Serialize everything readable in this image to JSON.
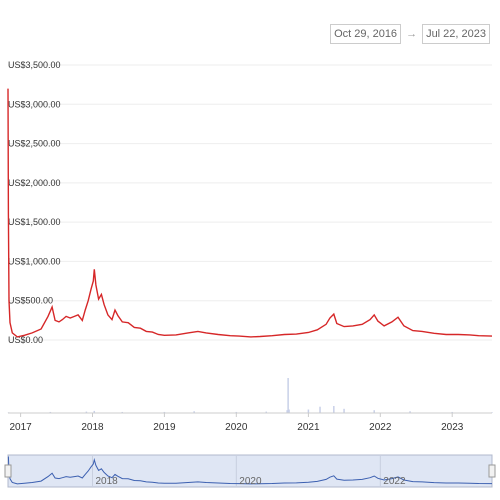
{
  "range_selector": {
    "from": "Oct 29, 2016",
    "arrow": "→",
    "to": "Jul 22, 2023"
  },
  "colors": {
    "price_line": "#d62728",
    "volume": "#c8d0e8",
    "navigator_fill": "#dfe6f4",
    "navigator_line": "#3b5fb0",
    "grid": "#eeeeee"
  },
  "chart_data": {
    "type": "line",
    "title": "",
    "xlabel": "",
    "ylabel": "",
    "ylim": [
      0,
      3500
    ],
    "xlim": [
      "2016-10-29",
      "2023-07-22"
    ],
    "y_ticks": [
      "US$0.00",
      "US$500.00",
      "US$1,000.00",
      "US$1,500.00",
      "US$2,000.00",
      "US$2,500.00",
      "US$3,000.00",
      "US$3,500.00"
    ],
    "x_ticks": [
      "2017",
      "2018",
      "2019",
      "2020",
      "2021",
      "2022",
      "2023"
    ],
    "navigator_ticks": [
      "2018",
      "2020",
      "2022"
    ],
    "series": [
      {
        "values": [
          [
            "2016-10-29",
            3200
          ],
          [
            "2016-10-31",
            1600
          ],
          [
            "2016-11-03",
            500
          ],
          [
            "2016-11-08",
            220
          ],
          [
            "2016-11-20",
            90
          ],
          [
            "2016-12-15",
            40
          ],
          [
            "2017-01-20",
            60
          ],
          [
            "2017-03-01",
            90
          ],
          [
            "2017-04-15",
            140
          ],
          [
            "2017-05-20",
            300
          ],
          [
            "2017-06-10",
            420
          ],
          [
            "2017-06-25",
            250
          ],
          [
            "2017-07-15",
            230
          ],
          [
            "2017-08-01",
            260
          ],
          [
            "2017-08-20",
            300
          ],
          [
            "2017-09-10",
            280
          ],
          [
            "2017-10-01",
            300
          ],
          [
            "2017-10-20",
            320
          ],
          [
            "2017-11-10",
            250
          ],
          [
            "2017-11-25",
            380
          ],
          [
            "2017-12-10",
            500
          ],
          [
            "2017-12-25",
            650
          ],
          [
            "2018-01-05",
            750
          ],
          [
            "2018-01-10",
            900
          ],
          [
            "2018-01-18",
            700
          ],
          [
            "2018-02-01",
            520
          ],
          [
            "2018-02-15",
            580
          ],
          [
            "2018-03-01",
            450
          ],
          [
            "2018-03-20",
            320
          ],
          [
            "2018-04-10",
            260
          ],
          [
            "2018-04-25",
            380
          ],
          [
            "2018-05-10",
            310
          ],
          [
            "2018-06-01",
            230
          ],
          [
            "2018-07-01",
            220
          ],
          [
            "2018-08-01",
            160
          ],
          [
            "2018-09-01",
            150
          ],
          [
            "2018-10-01",
            110
          ],
          [
            "2018-11-01",
            100
          ],
          [
            "2018-12-01",
            70
          ],
          [
            "2019-01-01",
            60
          ],
          [
            "2019-03-01",
            65
          ],
          [
            "2019-05-01",
            90
          ],
          [
            "2019-06-20",
            110
          ],
          [
            "2019-08-01",
            90
          ],
          [
            "2019-10-01",
            70
          ],
          [
            "2019-12-01",
            55
          ],
          [
            "2020-01-15",
            50
          ],
          [
            "2020-03-15",
            40
          ],
          [
            "2020-05-01",
            45
          ],
          [
            "2020-07-01",
            55
          ],
          [
            "2020-09-01",
            70
          ],
          [
            "2020-11-01",
            75
          ],
          [
            "2021-01-01",
            95
          ],
          [
            "2021-02-15",
            130
          ],
          [
            "2021-04-01",
            200
          ],
          [
            "2021-04-20",
            280
          ],
          [
            "2021-05-10",
            330
          ],
          [
            "2021-05-25",
            210
          ],
          [
            "2021-07-01",
            170
          ],
          [
            "2021-08-15",
            180
          ],
          [
            "2021-10-01",
            200
          ],
          [
            "2021-11-10",
            260
          ],
          [
            "2021-12-01",
            320
          ],
          [
            "2021-12-20",
            240
          ],
          [
            "2022-01-20",
            180
          ],
          [
            "2022-03-01",
            230
          ],
          [
            "2022-04-01",
            290
          ],
          [
            "2022-05-01",
            180
          ],
          [
            "2022-06-15",
            120
          ],
          [
            "2022-08-01",
            110
          ],
          [
            "2022-10-01",
            85
          ],
          [
            "2022-12-01",
            70
          ],
          [
            "2023-02-01",
            70
          ],
          [
            "2023-04-01",
            65
          ],
          [
            "2023-05-15",
            55
          ],
          [
            "2023-07-22",
            50
          ]
        ]
      }
    ],
    "volume": {
      "values": [
        [
          "2016-11-01",
          2
        ],
        [
          "2017-06-01",
          3
        ],
        [
          "2017-12-01",
          4
        ],
        [
          "2018-01-10",
          6
        ],
        [
          "2018-06-01",
          3
        ],
        [
          "2019-01-01",
          3
        ],
        [
          "2019-06-01",
          5
        ],
        [
          "2020-01-01",
          3
        ],
        [
          "2020-06-01",
          4
        ],
        [
          "2020-09-15",
          8
        ],
        [
          "2020-09-20",
          100
        ],
        [
          "2020-09-25",
          10
        ],
        [
          "2021-01-01",
          10
        ],
        [
          "2021-03-01",
          18
        ],
        [
          "2021-05-10",
          20
        ],
        [
          "2021-07-01",
          12
        ],
        [
          "2021-12-01",
          8
        ],
        [
          "2022-06-01",
          5
        ],
        [
          "2023-01-01",
          3
        ],
        [
          "2023-07-22",
          2
        ]
      ]
    }
  }
}
